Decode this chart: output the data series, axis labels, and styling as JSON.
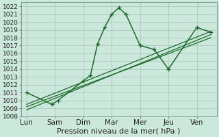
{
  "xlabel": "Pression niveau de la mer( hPa )",
  "bg_color": "#cce8dc",
  "grid_color": "#aaccbb",
  "line_color": "#1a6b2a",
  "ylim": [
    1008,
    1022.5
  ],
  "yticks": [
    1008,
    1009,
    1010,
    1011,
    1012,
    1013,
    1014,
    1015,
    1016,
    1017,
    1018,
    1019,
    1020,
    1021,
    1022
  ],
  "x_labels": [
    "Lun",
    "Sam",
    "Dim",
    "Mar",
    "Mer",
    "Jeu",
    "Ven"
  ],
  "x_tick_positions": [
    0,
    1,
    2,
    3,
    4,
    5,
    6
  ],
  "xlim": [
    -0.2,
    6.7
  ],
  "series1_x": [
    0,
    0.9,
    1.1,
    2.0,
    2.25,
    2.5,
    2.75,
    3.0,
    3.25,
    3.5,
    4.0,
    4.5,
    5.0,
    6.0,
    6.5
  ],
  "series1_y": [
    1011.0,
    1009.5,
    1010.0,
    1012.5,
    1013.2,
    1017.2,
    1019.3,
    1021.0,
    1021.8,
    1021.0,
    1017.0,
    1016.5,
    1014.0,
    1019.3,
    1018.7
  ],
  "trend1_x": [
    0,
    6.5
  ],
  "trend1_y": [
    1009.2,
    1018.0
  ],
  "trend2_x": [
    0,
    6.5
  ],
  "trend2_y": [
    1008.8,
    1018.4
  ],
  "trend3_x": [
    0,
    6.5
  ],
  "trend3_y": [
    1009.5,
    1018.8
  ],
  "ytick_fontsize": 6.5,
  "xtick_fontsize": 7.5,
  "xlabel_fontsize": 8
}
